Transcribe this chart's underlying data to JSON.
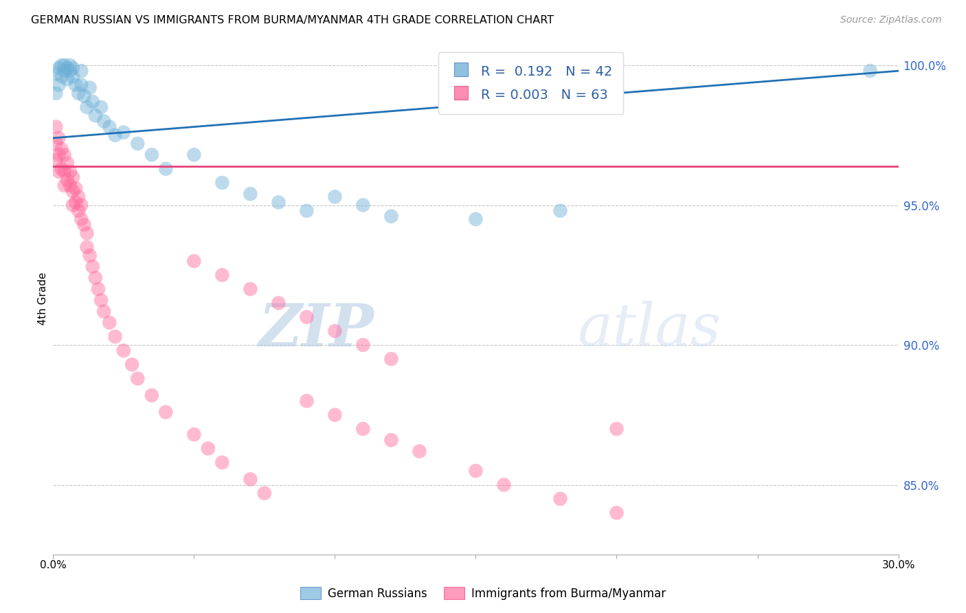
{
  "title": "GERMAN RUSSIAN VS IMMIGRANTS FROM BURMA/MYANMAR 4TH GRADE CORRELATION CHART",
  "source": "Source: ZipAtlas.com",
  "ylabel": "4th Grade",
  "xlim": [
    0.0,
    0.3
  ],
  "ylim": [
    0.825,
    1.008
  ],
  "yticks": [
    0.85,
    0.9,
    0.95,
    1.0
  ],
  "ytick_labels": [
    "85.0%",
    "90.0%",
    "95.0%",
    "100.0%"
  ],
  "blue_R": 0.192,
  "blue_N": 42,
  "pink_R": 0.003,
  "pink_N": 63,
  "blue_color": "#6BAED6",
  "pink_color": "#FF6699",
  "blue_line_color": "#2171B5",
  "pink_line_color": "#E8417A",
  "background_color": "#FFFFFF",
  "grid_color": "#C8C8C8",
  "blue_line_y0": 0.974,
  "blue_line_y1": 0.998,
  "pink_line_y0": 0.964,
  "pink_line_y1": 0.964,
  "blue_x": [
    0.001,
    0.001,
    0.002,
    0.002,
    0.003,
    0.003,
    0.004,
    0.004,
    0.005,
    0.005,
    0.006,
    0.006,
    0.007,
    0.007,
    0.008,
    0.009,
    0.01,
    0.01,
    0.011,
    0.012,
    0.013,
    0.014,
    0.015,
    0.017,
    0.018,
    0.02,
    0.022,
    0.025,
    0.03,
    0.035,
    0.04,
    0.05,
    0.06,
    0.07,
    0.08,
    0.09,
    0.1,
    0.11,
    0.12,
    0.15,
    0.18,
    0.29
  ],
  "blue_y": [
    0.997,
    0.99,
    0.999,
    0.993,
    1.0,
    0.996,
    1.0,
    0.998,
    0.999,
    0.995,
    1.0,
    0.998,
    0.999,
    0.996,
    0.993,
    0.99,
    0.998,
    0.993,
    0.989,
    0.985,
    0.992,
    0.987,
    0.982,
    0.985,
    0.98,
    0.978,
    0.975,
    0.976,
    0.972,
    0.968,
    0.963,
    0.968,
    0.958,
    0.954,
    0.951,
    0.948,
    0.953,
    0.95,
    0.946,
    0.945,
    0.948,
    0.998
  ],
  "pink_x": [
    0.001,
    0.001,
    0.001,
    0.002,
    0.002,
    0.002,
    0.003,
    0.003,
    0.004,
    0.004,
    0.004,
    0.005,
    0.005,
    0.006,
    0.006,
    0.007,
    0.007,
    0.007,
    0.008,
    0.008,
    0.009,
    0.009,
    0.01,
    0.01,
    0.011,
    0.012,
    0.012,
    0.013,
    0.014,
    0.015,
    0.016,
    0.017,
    0.018,
    0.02,
    0.022,
    0.025,
    0.028,
    0.03,
    0.035,
    0.04,
    0.05,
    0.055,
    0.06,
    0.07,
    0.075,
    0.09,
    0.1,
    0.11,
    0.12,
    0.13,
    0.15,
    0.16,
    0.18,
    0.2,
    0.05,
    0.06,
    0.07,
    0.08,
    0.09,
    0.1,
    0.11,
    0.12,
    0.2
  ],
  "pink_y": [
    0.978,
    0.972,
    0.966,
    0.974,
    0.968,
    0.962,
    0.97,
    0.963,
    0.968,
    0.962,
    0.957,
    0.965,
    0.959,
    0.962,
    0.957,
    0.96,
    0.955,
    0.95,
    0.956,
    0.951,
    0.953,
    0.948,
    0.95,
    0.945,
    0.943,
    0.94,
    0.935,
    0.932,
    0.928,
    0.924,
    0.92,
    0.916,
    0.912,
    0.908,
    0.903,
    0.898,
    0.893,
    0.888,
    0.882,
    0.876,
    0.868,
    0.863,
    0.858,
    0.852,
    0.847,
    0.88,
    0.875,
    0.87,
    0.866,
    0.862,
    0.855,
    0.85,
    0.845,
    0.84,
    0.93,
    0.925,
    0.92,
    0.915,
    0.91,
    0.905,
    0.9,
    0.895,
    0.87
  ]
}
